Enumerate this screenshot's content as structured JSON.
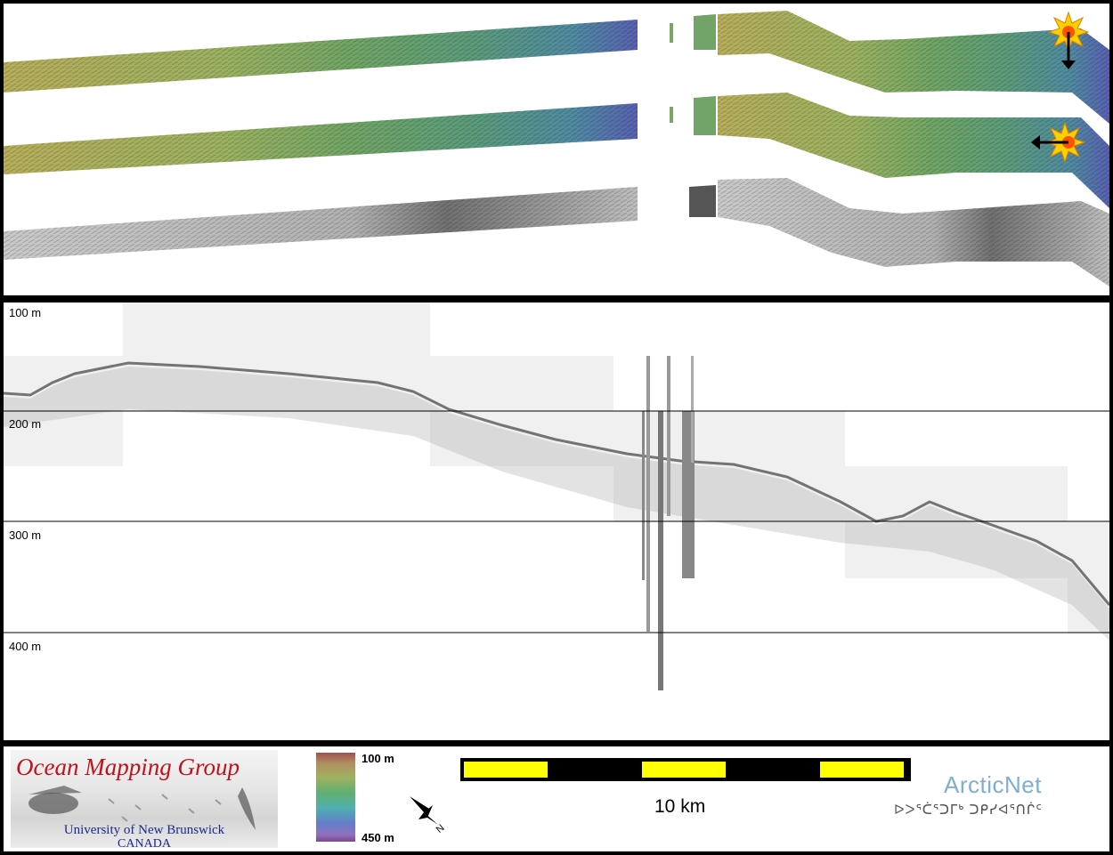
{
  "profile": {
    "depth_labels": [
      "100 m",
      "200 m",
      "300 m",
      "400 m"
    ]
  },
  "footer": {
    "group_name": "Ocean Mapping Group",
    "university": "University of New Brunswick",
    "country": "CANADA",
    "colorbar": {
      "top_label": "100 m",
      "bottom_label": "450 m"
    },
    "scale_label": "10 km",
    "compass_label": "N",
    "partner_name": "ArcticNet",
    "partner_syllabics": "ᐅᐳᕐᑖᕐᑐᒥᒃ ᑐᑭᓯᐊᕐᑎᒌᑦ"
  },
  "colors": {
    "frame": "#000000",
    "scale_yellow": "#ffff00",
    "ogm_red": "#c0121c",
    "ogm_blue": "#1a2a8a",
    "arcticnet_blue": "#7faed0"
  },
  "icons": [
    "sun-icon",
    "arrow-down-icon",
    "arrow-left-icon",
    "compass-icon"
  ]
}
